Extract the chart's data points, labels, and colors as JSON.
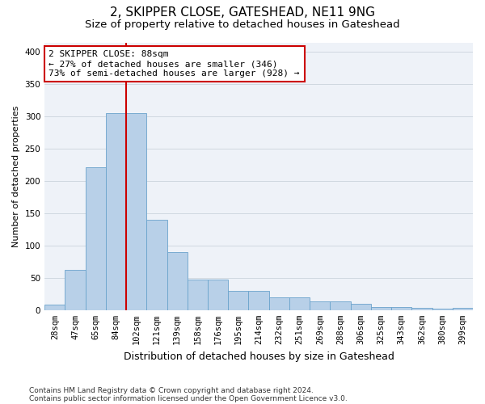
{
  "title": "2, SKIPPER CLOSE, GATESHEAD, NE11 9NG",
  "subtitle": "Size of property relative to detached houses in Gateshead",
  "xlabel": "Distribution of detached houses by size in Gateshead",
  "ylabel": "Number of detached properties",
  "categories": [
    "28sqm",
    "47sqm",
    "65sqm",
    "84sqm",
    "102sqm",
    "121sqm",
    "139sqm",
    "158sqm",
    "176sqm",
    "195sqm",
    "214sqm",
    "232sqm",
    "251sqm",
    "269sqm",
    "288sqm",
    "306sqm",
    "325sqm",
    "343sqm",
    "362sqm",
    "380sqm",
    "399sqm"
  ],
  "values": [
    8,
    63,
    222,
    305,
    305,
    140,
    90,
    47,
    47,
    30,
    30,
    20,
    20,
    14,
    13,
    10,
    5,
    5,
    4,
    2,
    4
  ],
  "bar_color": "#b8d0e8",
  "bar_edge_color": "#6aa3cc",
  "vline_color": "#cc0000",
  "vline_x": 3.5,
  "annotation_line1": "2 SKIPPER CLOSE: 88sqm",
  "annotation_line2": "← 27% of detached houses are smaller (346)",
  "annotation_line3": "73% of semi-detached houses are larger (928) →",
  "annot_box_edge": "#cc0000",
  "ylim": [
    0,
    415
  ],
  "yticks": [
    0,
    50,
    100,
    150,
    200,
    250,
    300,
    350,
    400
  ],
  "grid_color": "#d0d8e0",
  "bg_color": "#eef2f8",
  "footnote_line1": "Contains HM Land Registry data © Crown copyright and database right 2024.",
  "footnote_line2": "Contains public sector information licensed under the Open Government Licence v3.0.",
  "title_fontsize": 11,
  "subtitle_fontsize": 9.5,
  "xlabel_fontsize": 9,
  "ylabel_fontsize": 8,
  "tick_fontsize": 7.5,
  "annot_fontsize": 8,
  "footnote_fontsize": 6.5
}
